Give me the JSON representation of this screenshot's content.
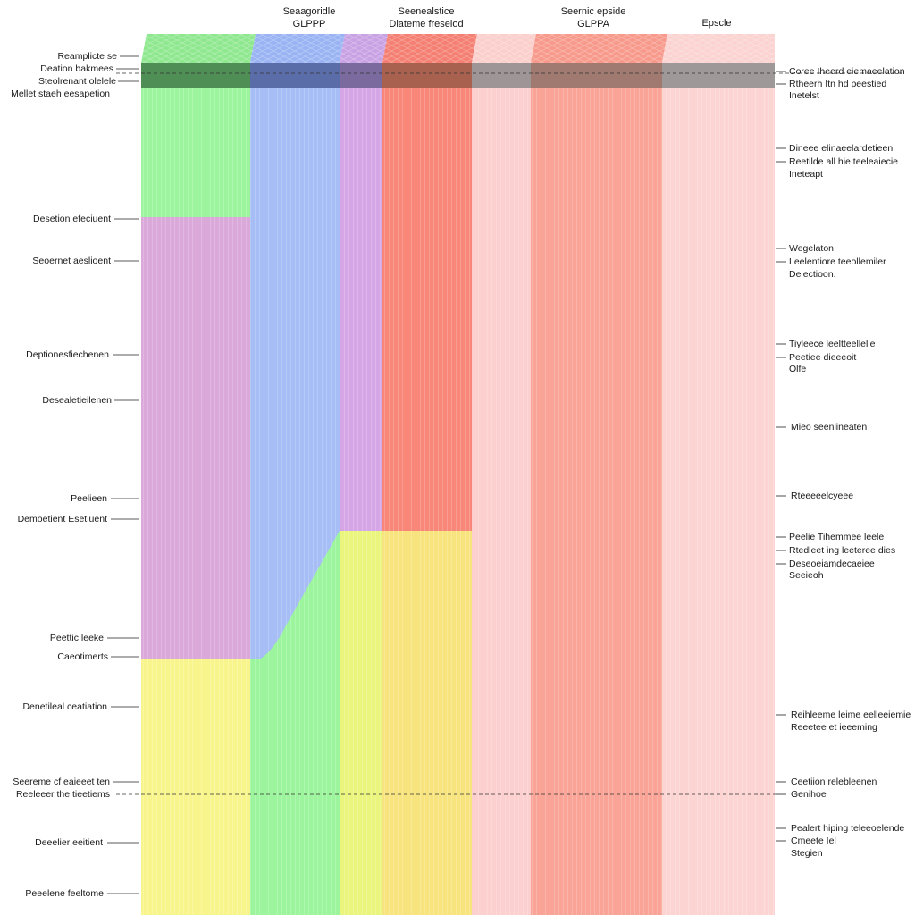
{
  "column_headers": [
    {
      "lines": [
        "Seaagoridle",
        "GLPPP"
      ]
    },
    {
      "lines": [
        "Seenealstice",
        "Diateme freseiod"
      ]
    },
    {
      "lines": [
        "Seernic epside",
        "GLPPA"
      ]
    },
    {
      "lines": [
        "Epscle"
      ]
    }
  ],
  "left_labels": [
    "Reamplicte se",
    "Deation bakmees",
    "Steolrenant olelele",
    "Mellet staeh eesapetion",
    "Desetion efeciuent",
    "Seoernet aeslioent",
    "Deptionesfiechenen",
    "Desealetieilenen",
    "Peelieen",
    "Demoetient Esetiuent",
    "Peettic leeke",
    "Caeotimerts",
    "Denetileal ceatiation",
    "Seereme cf eaieeet ten",
    "Reeleeer the tieetiems",
    "Deeelier eeitient",
    "Peeelene feeltome"
  ],
  "right_labels": [
    "Coree Iheerd eiemaeelation",
    "Rtheerh Itn hd peestied",
    "Inetelst",
    "Dineee elinaeelardetieen",
    "Reetilde all hie teeleaiecie",
    "Ineteapt",
    "Wegelaton",
    "Leelentiore teeollemiler",
    "Delectioon.",
    "Tiyleece leeltteellelie",
    "Peetiee dieeeoit",
    "Olfe",
    "Mieo seenlineaten",
    "Rteeeeelcyeee",
    "Peelie Tihemmee leele",
    "Rtedleet ing leeteree dies",
    "Deseoeiamdecaeiee",
    "Seeieoh",
    "Reihleeme leime eelleeiemie",
    "Reeetee et ieeeming",
    "Ceetiion relebleenen",
    "Genihoe",
    "Pealert hiping teleeoelende",
    "Cmeete Iel",
    "Stegien"
  ],
  "colors": {
    "green": "#9cf59c",
    "purple": "#dba8da",
    "blue": "#a6bef5",
    "yellow": "#f8f58c",
    "yellow_light": "#e9f57c",
    "salmon": "#f8877a",
    "pink": "#fcd0ce",
    "salmon_mid": "#f9a496",
    "band_dark": "#000000"
  }
}
